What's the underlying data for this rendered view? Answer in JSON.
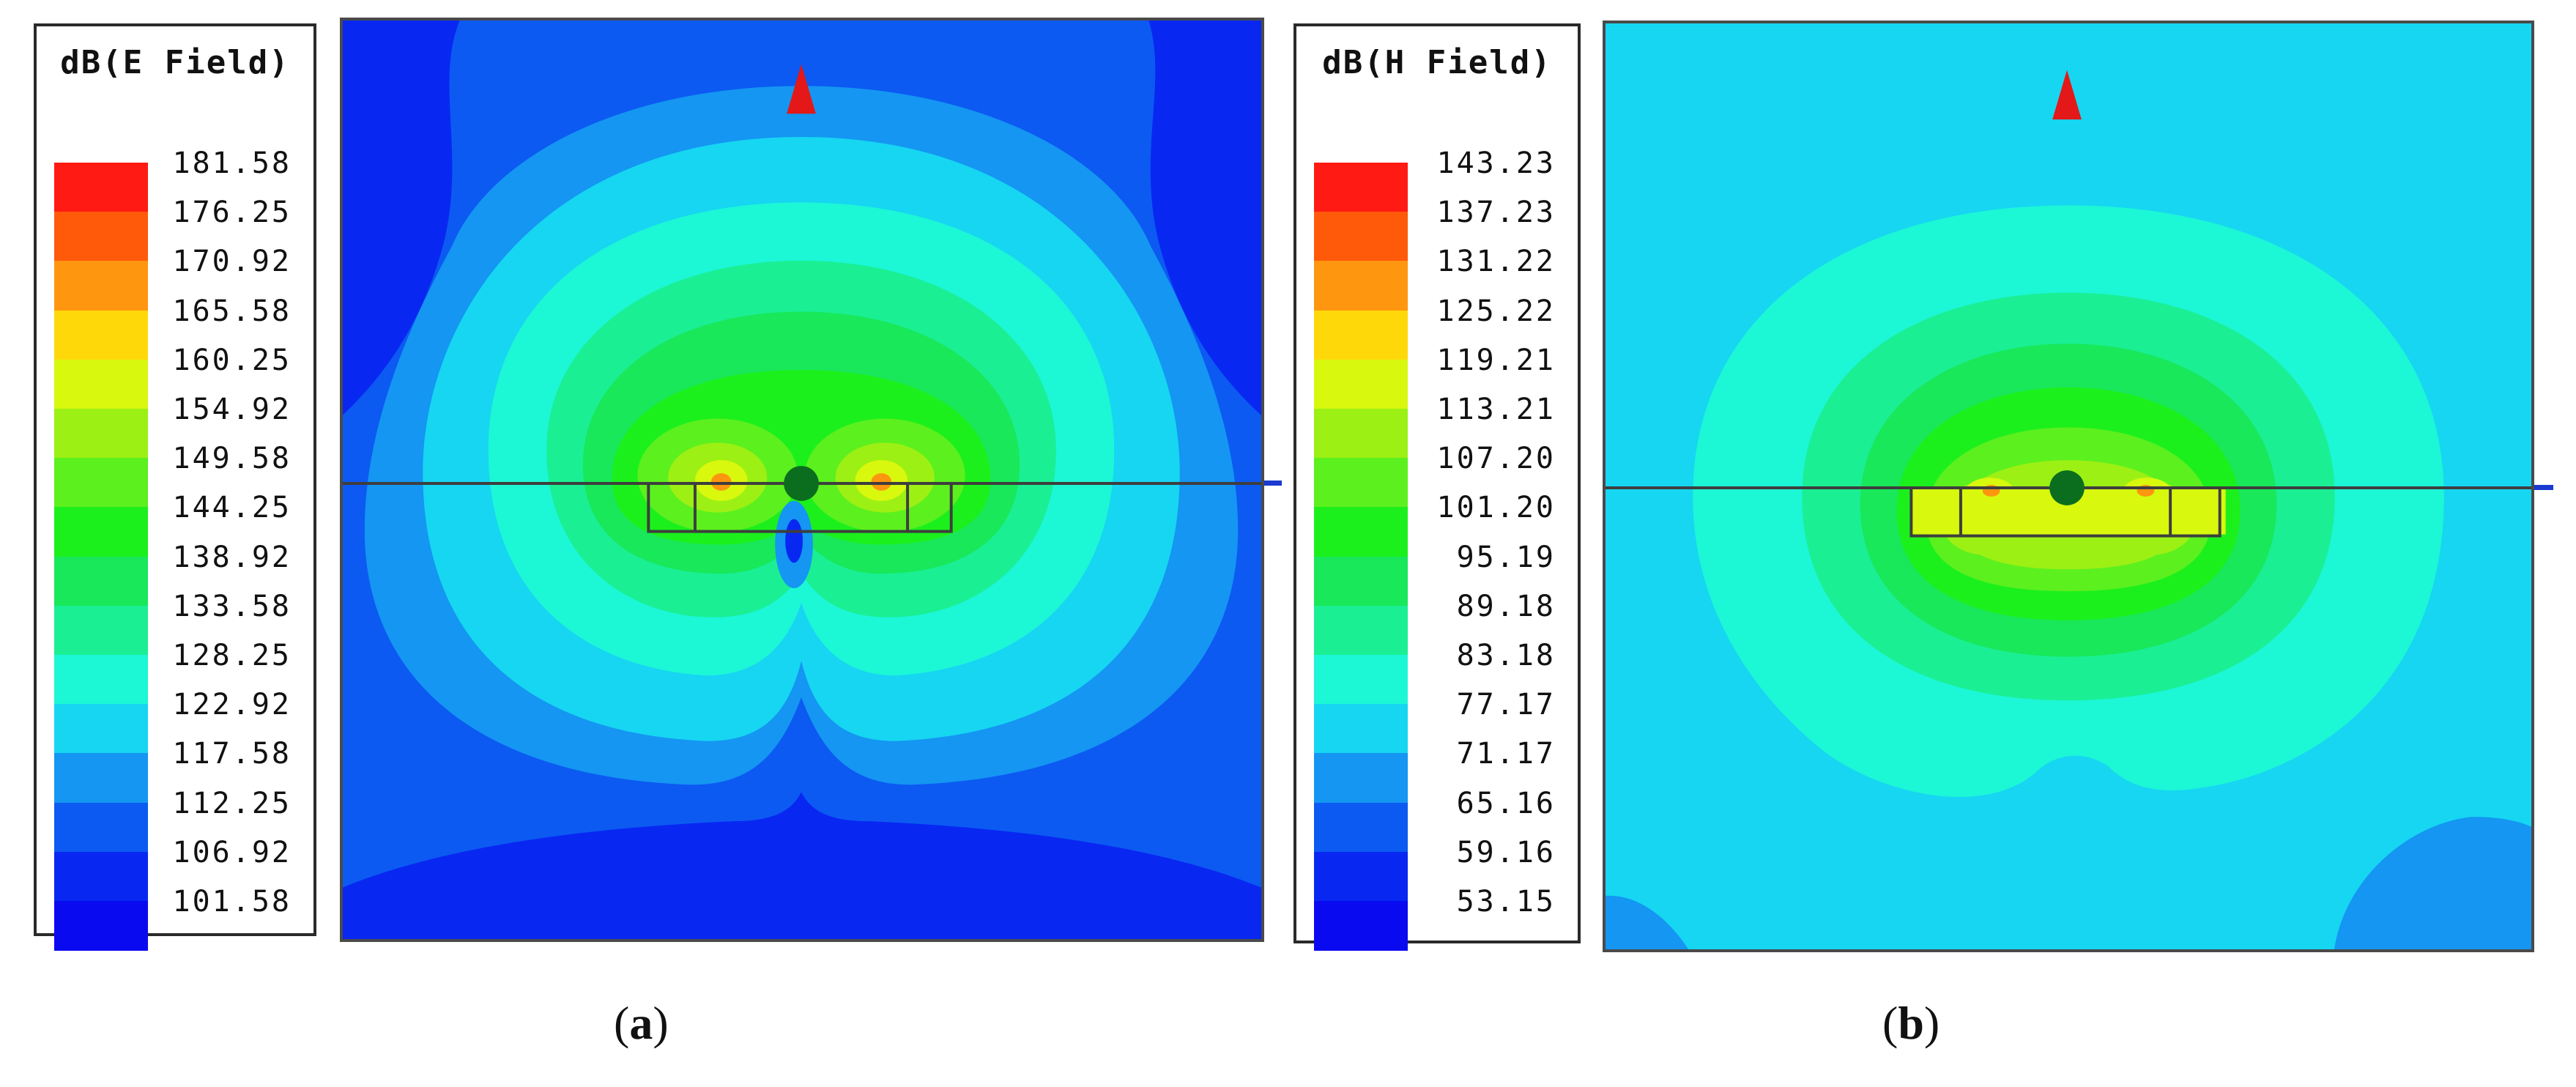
{
  "panels": [
    {
      "caption_open": "(",
      "caption_letter": "a",
      "caption_close": ")",
      "legend_title": "dB(E Field)",
      "levels": [
        "181.58",
        "176.25",
        "170.92",
        "165.58",
        "160.25",
        "154.92",
        "149.58",
        "144.25",
        "138.92",
        "133.58",
        "128.25",
        "122.92",
        "117.58",
        "112.25",
        "106.92",
        "101.58"
      ]
    },
    {
      "caption_open": "(",
      "caption_letter": "b",
      "caption_close": ")",
      "legend_title": "dB(H Field)",
      "levels": [
        "143.23",
        "137.23",
        "131.22",
        "125.22",
        "119.21",
        "113.21",
        "107.20",
        "101.20",
        "95.19",
        "89.18",
        "83.18",
        "77.17",
        "71.17",
        "65.16",
        "59.16",
        "53.15"
      ]
    }
  ],
  "colorscale": [
    "#ff1a14",
    "#ff5a0a",
    "#ff9610",
    "#ffd80a",
    "#d8f80e",
    "#9cf014",
    "#5cf01e",
    "#1cf01c",
    "#18e85a",
    "#1aef94",
    "#1cf7d6",
    "#16d6f2",
    "#1496f2",
    "#0c5af2",
    "#0828f2",
    "#0a0af0"
  ],
  "arrow_color": "#e41818",
  "feed_color": "#0b6e1e",
  "marker_color": "#1a3ad0"
}
